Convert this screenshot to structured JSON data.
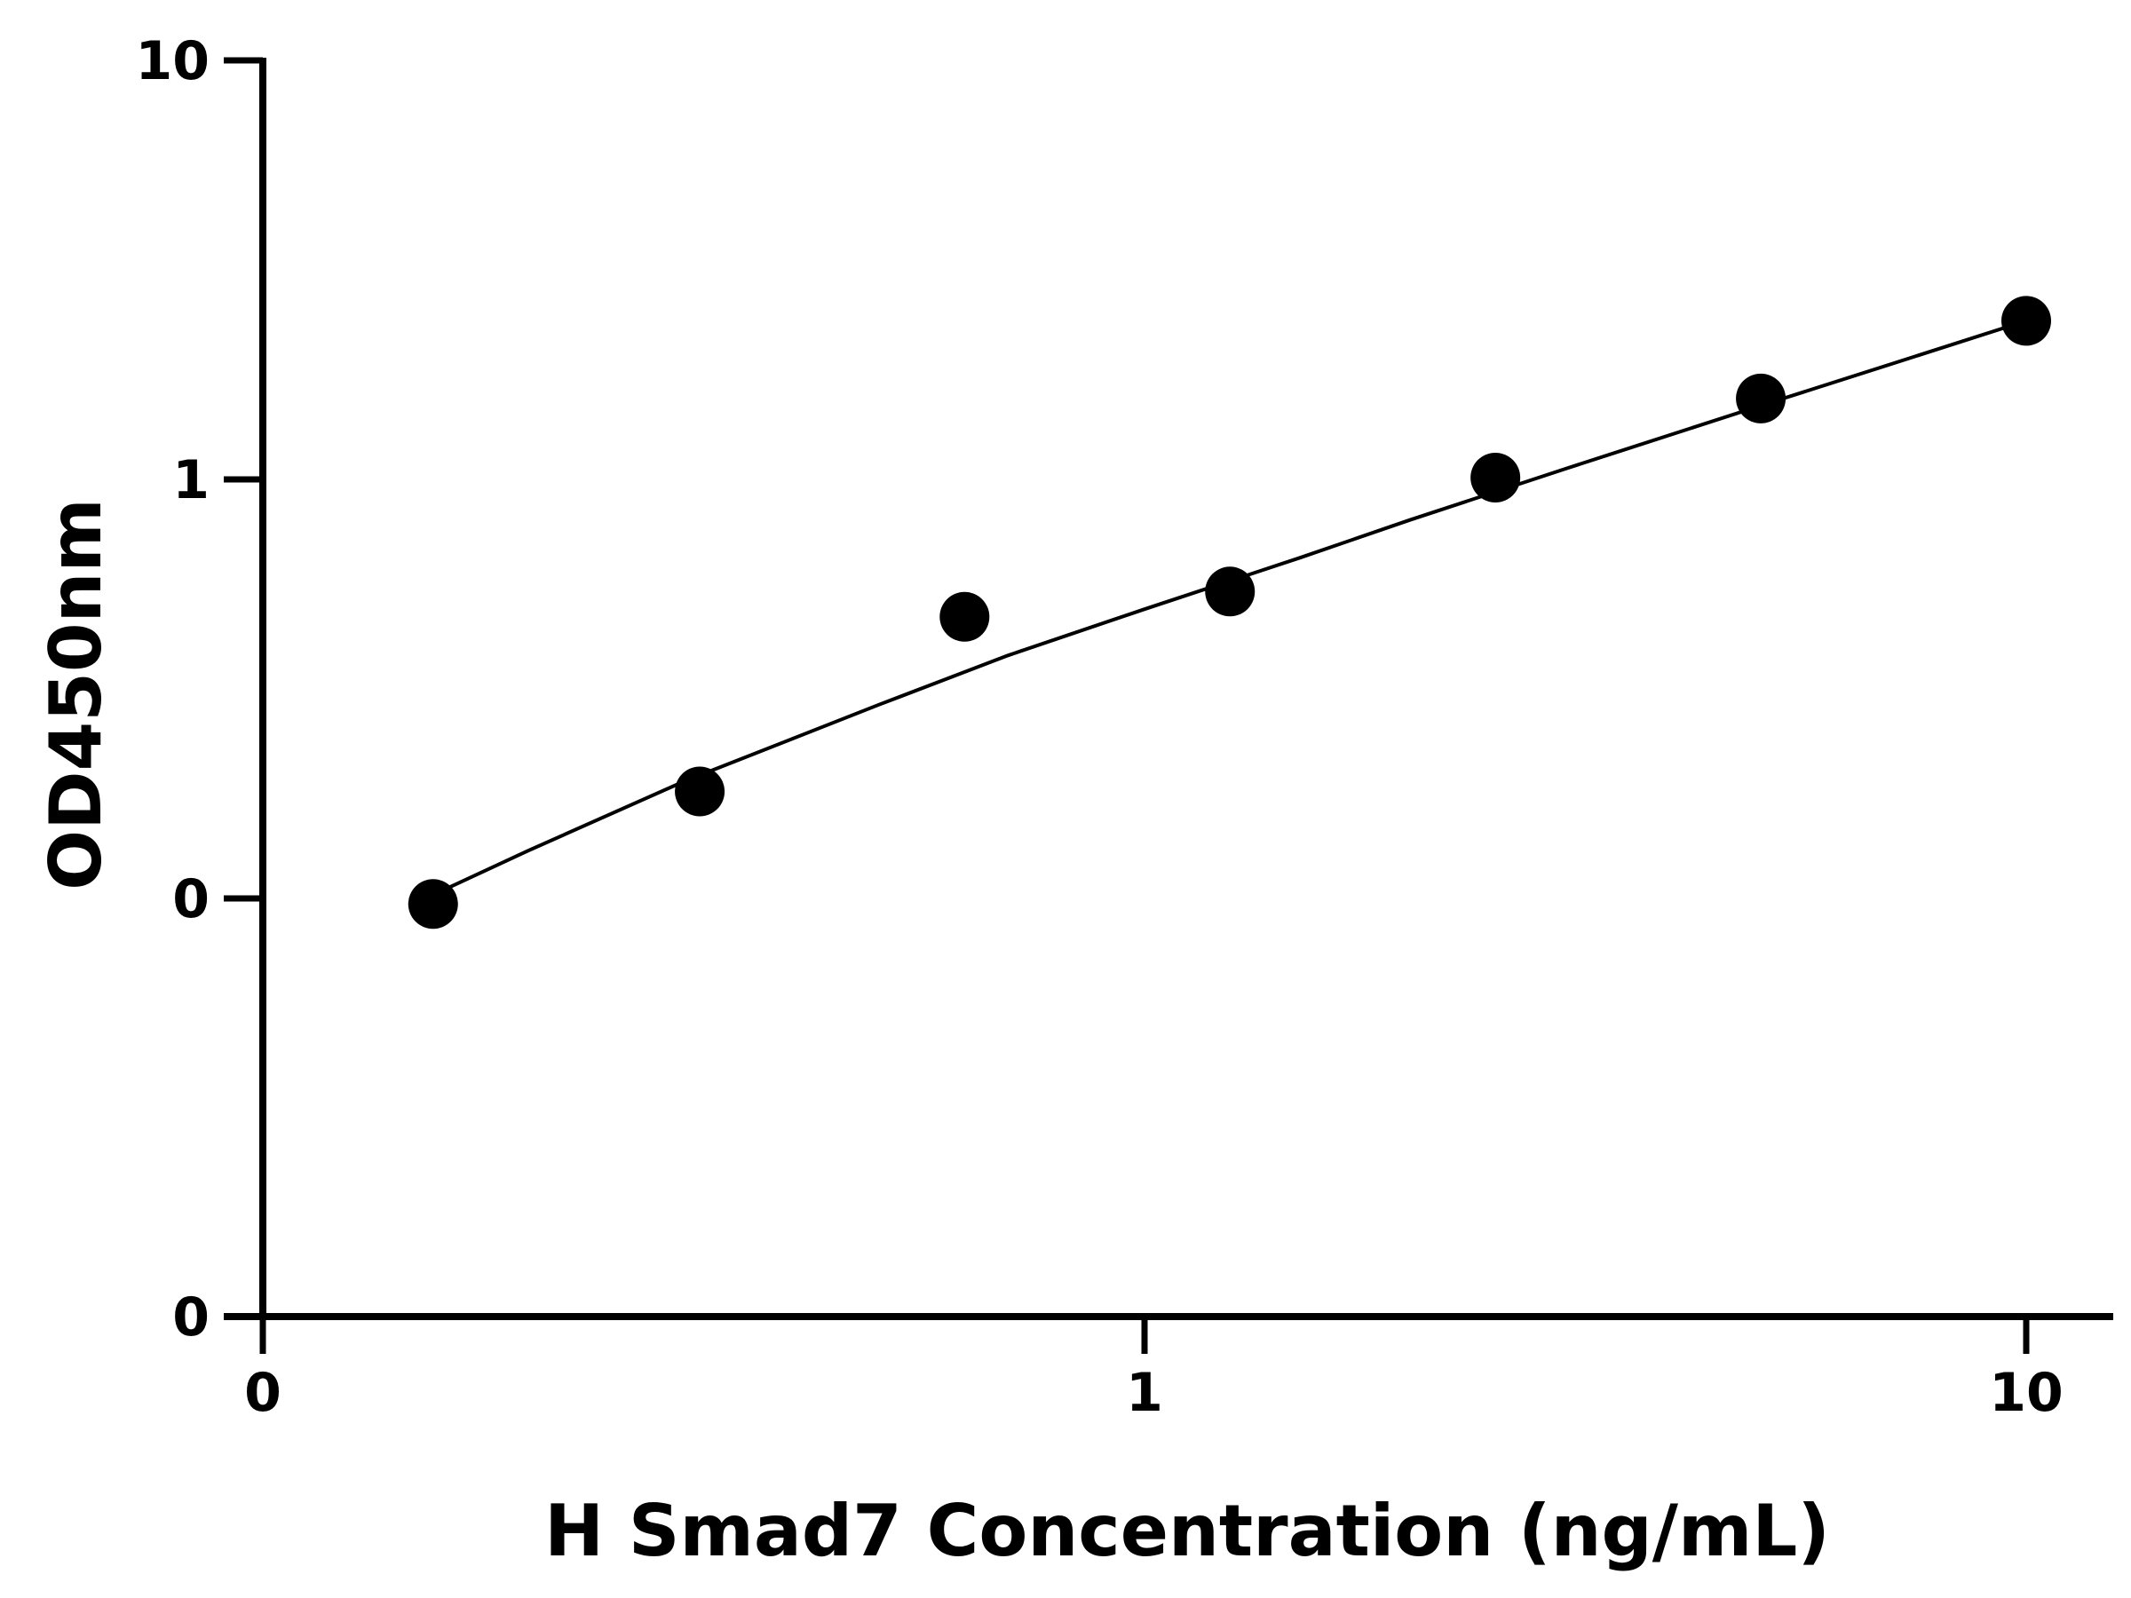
{
  "chart_data": {
    "type": "scatter",
    "title": "",
    "xlabel": "H Smad7 Concentration (ng/mL)",
    "ylabel": "OD450nm",
    "x_scale": "log",
    "y_scale": "log",
    "x_ticks": [
      {
        "value": 0.1,
        "label": "0"
      },
      {
        "value": 1,
        "label": "1"
      },
      {
        "value": 10,
        "label": "10"
      }
    ],
    "y_ticks": [
      {
        "value": 0.01,
        "label": "0"
      },
      {
        "value": 0.1,
        "label": "0"
      },
      {
        "value": 1,
        "label": "1"
      },
      {
        "value": 10,
        "label": "10"
      }
    ],
    "xlim": [
      0.1,
      11.5
    ],
    "ylim": [
      0.01,
      10
    ],
    "grid": false,
    "legend": "none",
    "marker_color": "#000000",
    "line_color": "#000000",
    "series": [
      {
        "points": [
          {
            "x": 0.156,
            "y": 0.097
          },
          {
            "x": 0.313,
            "y": 0.18
          },
          {
            "x": 0.625,
            "y": 0.47
          },
          {
            "x": 1.25,
            "y": 0.54
          },
          {
            "x": 2.5,
            "y": 1.01
          },
          {
            "x": 5,
            "y": 1.56
          },
          {
            "x": 10,
            "y": 2.39
          }
        ],
        "fit": [
          {
            "x": 0.156,
            "y": 0.102
          },
          {
            "x": 0.2,
            "y": 0.13
          },
          {
            "x": 0.3,
            "y": 0.19
          },
          {
            "x": 0.5,
            "y": 0.29
          },
          {
            "x": 0.7,
            "y": 0.38
          },
          {
            "x": 1,
            "y": 0.49
          },
          {
            "x": 1.5,
            "y": 0.65
          },
          {
            "x": 2,
            "y": 0.8
          },
          {
            "x": 3,
            "y": 1.06
          },
          {
            "x": 5,
            "y": 1.5
          },
          {
            "x": 7,
            "y": 1.88
          },
          {
            "x": 10,
            "y": 2.39
          }
        ]
      }
    ]
  }
}
